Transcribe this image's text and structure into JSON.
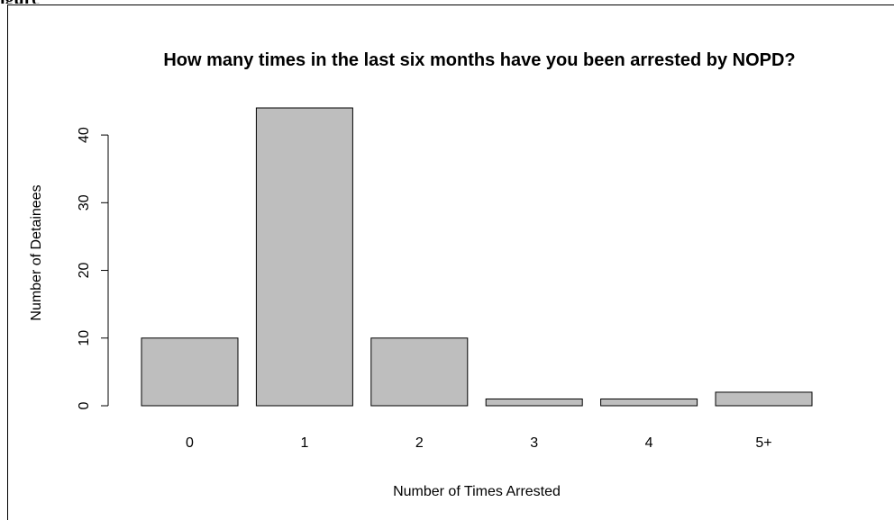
{
  "header_fragment": "igure",
  "chart_data": {
    "type": "bar",
    "title": "How many times in the last six months have you been arrested by NOPD?",
    "xlabel": "Number of Times Arrested",
    "ylabel": "Number of Detainees",
    "categories": [
      "0",
      "1",
      "2",
      "3",
      "4",
      "5+"
    ],
    "values": [
      10,
      44,
      10,
      1,
      1,
      2
    ],
    "ylim": [
      0,
      44
    ],
    "yticks": [
      0,
      10,
      20,
      30,
      40
    ],
    "bar_color": "#bebebe",
    "grid": false,
    "legend": "none"
  }
}
